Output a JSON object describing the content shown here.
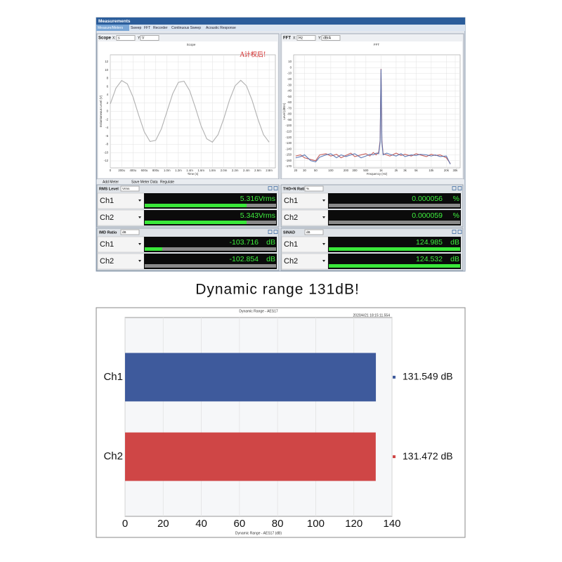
{
  "window": {
    "title": "Measurements",
    "tabs": [
      "Measure/Meters",
      "Sweep",
      "FFT",
      "Recorder",
      "Continuous Sweep",
      "Acoustic Response"
    ]
  },
  "panels": [
    {
      "title": "Scope",
      "x_label": "X:",
      "x_unit": "s",
      "y_label": "Y:",
      "y_unit": "V"
    },
    {
      "title": "FFT",
      "x_label": "X:",
      "x_unit": "Hz",
      "y_label": "Y:",
      "y_unit": "dBrA"
    }
  ],
  "toolbar": [
    "Add Meter",
    "Save Meter Data",
    "Regulate"
  ],
  "meters": [
    {
      "title": "RMS Level",
      "unit_select": "Vrms",
      "channels": [
        {
          "name": "Ch1",
          "value": 5.316,
          "unit": "Vrms"
        },
        {
          "name": "Ch2",
          "value": 5.343,
          "unit": "Vrms"
        }
      ]
    },
    {
      "title": "THD+N Ratio",
      "unit_select": "%",
      "channels": [
        {
          "name": "Ch1",
          "value": 5.6e-05,
          "unit": "%"
        },
        {
          "name": "Ch2",
          "value": 5.9e-05,
          "unit": "%"
        }
      ]
    },
    {
      "title": "IMD Ratio",
      "unit_select": "dB",
      "channels": [
        {
          "name": "Ch1",
          "value": -103.716,
          "unit": "dB"
        },
        {
          "name": "Ch2",
          "value": -102.854,
          "unit": "dB"
        }
      ]
    },
    {
      "title": "SINAD",
      "unit_select": "dB",
      "channels": [
        {
          "name": "Ch1",
          "value": 124.985,
          "unit": "dB"
        },
        {
          "name": "Ch2",
          "value": 124.532,
          "unit": "dB"
        }
      ]
    }
  ],
  "caption": "Dynamic range 131dB!",
  "chart_data": [
    {
      "type": "line",
      "title": "Scope",
      "x_label": "Time (s)",
      "y_label": "Instantaneous Level (V)",
      "annotation": "A计权后!",
      "x": [
        0,
        0.0001,
        0.0002,
        0.0003,
        0.0004,
        0.0005,
        0.0006,
        0.0007,
        0.0008,
        0.0009,
        0.001,
        0.0011,
        0.0012,
        0.0013,
        0.0014,
        0.0015,
        0.0016,
        0.0017,
        0.0018,
        0.0019,
        0.002,
        0.0021,
        0.0022,
        0.0023,
        0.0024,
        0.0025,
        0.0026,
        0.0027,
        0.0028
      ],
      "values": [
        1.8,
        5.63,
        7.47,
        6.66,
        3.5,
        -0.9,
        -4.99,
        -7.3,
        -7.03,
        -4.27,
        0,
        4.27,
        7.03,
        7.3,
        4.99,
        0.9,
        -3.5,
        -6.66,
        -7.47,
        -5.63,
        -1.8,
        2.67,
        6.19,
        7.52,
        6.19,
        2.67,
        -1.8,
        -5.63,
        -7.47
      ],
      "color": "#a8a8a8",
      "xlim": [
        0,
        0.00291
      ],
      "ylim": [
        -13.7,
        13.7
      ],
      "xticks": [
        0,
        {
          "value": 0.0002,
          "label": "200u"
        },
        {
          "value": 0.0004,
          "label": "400u"
        },
        {
          "value": 0.0006,
          "label": "600u"
        },
        {
          "value": 0.0008,
          "label": "800u"
        },
        {
          "value": 0.001,
          "label": "1.0m"
        },
        {
          "value": 0.0012,
          "label": "1.2m"
        },
        {
          "value": 0.0014,
          "label": "1.4m"
        },
        {
          "value": 0.0016,
          "label": "1.6m"
        },
        {
          "value": 0.0018,
          "label": "1.8m"
        },
        {
          "value": 0.002,
          "label": "2.0m"
        },
        {
          "value": 0.0022,
          "label": "2.2m"
        },
        {
          "value": 0.0024,
          "label": "2.4m"
        },
        {
          "value": 0.0026,
          "label": "2.6m"
        },
        {
          "value": 0.0028,
          "label": "2.8m"
        }
      ],
      "yticks": [
        12,
        10,
        8,
        6,
        4,
        2,
        0,
        -2,
        -4,
        -6,
        -8,
        -10,
        -12
      ],
      "grid": true
    },
    {
      "type": "line",
      "title": "FFT",
      "x_label": "Frequency (Hz)",
      "y_label": "Level (dBrA)",
      "log_x": true,
      "x": [
        20,
        25,
        30,
        40,
        50,
        60,
        80,
        100,
        130,
        160,
        200,
        250,
        300,
        400,
        500,
        600,
        700,
        800,
        900,
        960,
        1000,
        1040,
        1100,
        1300,
        1500,
        2000,
        2500,
        3000,
        4000,
        5000,
        6000,
        8000,
        10000,
        12000,
        15000,
        20000,
        24000
      ],
      "series": [
        {
          "color": "#c0504d",
          "values": [
            -152,
            -150,
            -155,
            -158,
            -160,
            -150,
            -148,
            -152,
            -149,
            -155,
            -151,
            -147,
            -153,
            -150,
            -148,
            -152,
            -146,
            -150,
            -145,
            -125,
            -2,
            -125,
            -148,
            -150,
            -152,
            -147,
            -151,
            -149,
            -152,
            -148,
            -150,
            -153,
            -149,
            -151,
            -150,
            -155,
            -165
          ]
        },
        {
          "color": "#4f6fb0",
          "values": [
            -155,
            -153,
            -150,
            -160,
            -162,
            -154,
            -150,
            -148,
            -155,
            -150,
            -153,
            -150,
            -148,
            -155,
            -152,
            -149,
            -150,
            -147,
            -148,
            -128,
            -3,
            -128,
            -150,
            -147,
            -149,
            -152,
            -148,
            -153,
            -150,
            -151,
            -149,
            -150,
            -152,
            -150,
            -153,
            -152,
            -166
          ]
        }
      ],
      "xlim": [
        18.2,
        37600
      ],
      "ylim": [
        -172.4,
        22.1
      ],
      "xticks": [
        20,
        30,
        50,
        100,
        200,
        300,
        500,
        {
          "value": 1000,
          "label": "1k"
        },
        {
          "value": 2000,
          "label": "2k"
        },
        {
          "value": 3000,
          "label": "3k"
        },
        {
          "value": 5000,
          "label": "5k"
        },
        {
          "value": 10000,
          "label": "10k"
        },
        {
          "value": 20000,
          "label": "20k"
        },
        {
          "value": 30000,
          "label": "30k"
        }
      ],
      "yticks": [
        10,
        0,
        -10,
        -20,
        -30,
        -40,
        -50,
        -60,
        -70,
        -80,
        -90,
        -100,
        -110,
        -120,
        -130,
        -140,
        -150,
        -160,
        -170
      ],
      "grid": true
    },
    {
      "type": "hbar",
      "title": "Dynamic Range - AES17",
      "subtitle": "2020/4/21 18:15:11.554",
      "x_label": "Dynamic Range - AES17 (dB)",
      "categories": [
        "Ch1",
        "Ch2"
      ],
      "values": [
        131.549,
        131.472
      ],
      "value_labels": [
        "131.549 dB",
        "131.472 dB"
      ],
      "colors": [
        "#3e5a9c",
        "#cf4646"
      ],
      "xlim": [
        0,
        140
      ],
      "xticks": [
        0,
        20,
        40,
        60,
        80,
        100,
        120,
        140
      ],
      "grid": true
    }
  ]
}
